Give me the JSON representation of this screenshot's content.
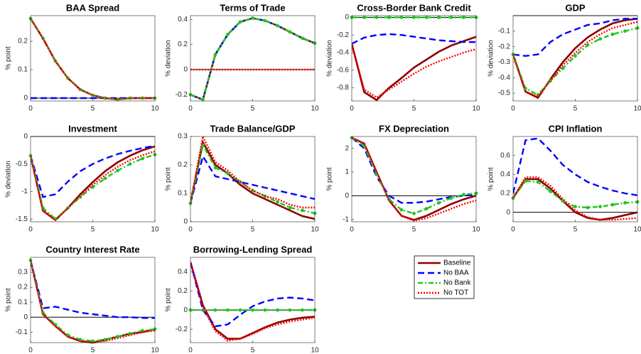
{
  "chart_data": [
    {
      "type": "line",
      "title": "BAA Spread",
      "y_label": "% point",
      "x": [
        0,
        1,
        2,
        3,
        4,
        5,
        6,
        7,
        8,
        9,
        10
      ],
      "xlim": [
        0,
        10
      ],
      "xticks": [
        0,
        5,
        10
      ],
      "ylim": [
        -0.01,
        0.29
      ],
      "yticks": [
        0,
        0.1,
        0.2
      ],
      "series": [
        {
          "name": "Baseline",
          "color": "#8b0000",
          "style": "solid",
          "values": [
            0.28,
            0.21,
            0.13,
            0.07,
            0.03,
            0.01,
            0,
            -0.005,
            0,
            0,
            0
          ]
        },
        {
          "name": "No BAA",
          "color": "#0000ff",
          "style": "dashed",
          "values": [
            0,
            0,
            0,
            0,
            0,
            0,
            0,
            0,
            0,
            0,
            0
          ]
        },
        {
          "name": "No Bank",
          "color": "#22c422",
          "style": "dashdot",
          "values": [
            0.28,
            0.21,
            0.13,
            0.07,
            0.03,
            0.01,
            0,
            -0.005,
            0,
            0,
            0
          ]
        },
        {
          "name": "No TOT",
          "color": "#ff0000",
          "style": "dotted",
          "values": [
            0.28,
            0.21,
            0.13,
            0.07,
            0.03,
            0.01,
            0,
            -0.005,
            0,
            0,
            0
          ]
        }
      ]
    },
    {
      "type": "line",
      "title": "Terms of Trade",
      "y_label": "% deviation",
      "x": [
        0,
        1,
        2,
        3,
        4,
        5,
        6,
        7,
        8,
        9,
        10
      ],
      "xlim": [
        0,
        10
      ],
      "xticks": [
        0,
        5,
        10
      ],
      "ylim": [
        -0.25,
        0.43
      ],
      "yticks": [
        -0.2,
        0,
        0.2,
        0.4
      ],
      "series": [
        {
          "name": "Baseline",
          "color": "#8b0000",
          "style": "solid",
          "values": [
            -0.2,
            -0.24,
            0.12,
            0.28,
            0.38,
            0.41,
            0.39,
            0.35,
            0.3,
            0.25,
            0.21
          ]
        },
        {
          "name": "No BAA",
          "color": "#0000ff",
          "style": "dashed",
          "values": [
            -0.2,
            -0.24,
            0.12,
            0.28,
            0.38,
            0.41,
            0.39,
            0.35,
            0.3,
            0.25,
            0.21
          ]
        },
        {
          "name": "No Bank",
          "color": "#22c422",
          "style": "dashdot",
          "values": [
            -0.2,
            -0.24,
            0.12,
            0.28,
            0.38,
            0.41,
            0.39,
            0.35,
            0.3,
            0.25,
            0.21
          ]
        },
        {
          "name": "No TOT",
          "color": "#ff0000",
          "style": "dotted",
          "values": [
            0,
            0,
            0,
            0,
            0,
            0,
            0,
            0,
            0,
            0,
            0
          ]
        }
      ]
    },
    {
      "type": "line",
      "title": "Cross-Border Bank Credit",
      "y_label": "% deviation",
      "x": [
        0,
        1,
        2,
        3,
        4,
        5,
        6,
        7,
        8,
        9,
        10
      ],
      "xlim": [
        0,
        10
      ],
      "xticks": [
        0,
        5,
        10
      ],
      "ylim": [
        -0.95,
        0.02
      ],
      "yticks": [
        -0.8,
        -0.6,
        -0.4,
        -0.2,
        0
      ],
      "series": [
        {
          "name": "Baseline",
          "color": "#8b0000",
          "style": "solid",
          "values": [
            -0.3,
            -0.85,
            -0.94,
            -0.8,
            -0.69,
            -0.57,
            -0.48,
            -0.39,
            -0.32,
            -0.27,
            -0.22
          ]
        },
        {
          "name": "No BAA",
          "color": "#0000ff",
          "style": "dashed",
          "values": [
            -0.3,
            -0.23,
            -0.2,
            -0.19,
            -0.2,
            -0.22,
            -0.24,
            -0.26,
            -0.27,
            -0.28,
            -0.28
          ]
        },
        {
          "name": "No Bank",
          "color": "#22c422",
          "style": "dashdot",
          "values": [
            0,
            0,
            0,
            0,
            0,
            0,
            0,
            0,
            0,
            0,
            0
          ]
        },
        {
          "name": "No TOT",
          "color": "#ff0000",
          "style": "dotted",
          "values": [
            -0.3,
            -0.82,
            -0.91,
            -0.82,
            -0.73,
            -0.64,
            -0.56,
            -0.5,
            -0.45,
            -0.4,
            -0.36
          ]
        }
      ]
    },
    {
      "type": "line",
      "title": "GDP",
      "y_label": "% deviation",
      "x": [
        0,
        1,
        2,
        3,
        4,
        5,
        6,
        7,
        8,
        9,
        10
      ],
      "xlim": [
        0,
        10
      ],
      "xticks": [
        0,
        5,
        10
      ],
      "ylim": [
        -0.55,
        0
      ],
      "yticks": [
        -0.5,
        -0.4,
        -0.3,
        -0.2,
        -0.1
      ],
      "series": [
        {
          "name": "Baseline",
          "color": "#8b0000",
          "style": "solid",
          "values": [
            -0.25,
            -0.49,
            -0.53,
            -0.41,
            -0.3,
            -0.21,
            -0.14,
            -0.09,
            -0.05,
            -0.03,
            -0.02
          ]
        },
        {
          "name": "No BAA",
          "color": "#0000ff",
          "style": "dashed",
          "values": [
            -0.25,
            -0.26,
            -0.25,
            -0.17,
            -0.12,
            -0.09,
            -0.06,
            -0.05,
            -0.03,
            -0.02,
            -0.02
          ]
        },
        {
          "name": "No Bank",
          "color": "#22c422",
          "style": "dashdot",
          "values": [
            -0.25,
            -0.47,
            -0.51,
            -0.42,
            -0.34,
            -0.26,
            -0.19,
            -0.15,
            -0.12,
            -0.1,
            -0.08
          ]
        },
        {
          "name": "No TOT",
          "color": "#ff0000",
          "style": "dotted",
          "values": [
            -0.25,
            -0.49,
            -0.52,
            -0.42,
            -0.32,
            -0.24,
            -0.17,
            -0.12,
            -0.08,
            -0.06,
            -0.04
          ]
        }
      ]
    },
    {
      "type": "line",
      "title": "Investment",
      "y_label": "% deviation",
      "x": [
        0,
        1,
        2,
        3,
        4,
        5,
        6,
        7,
        8,
        9,
        10
      ],
      "xlim": [
        0,
        10
      ],
      "xticks": [
        0,
        5,
        10
      ],
      "ylim": [
        -1.55,
        0
      ],
      "yticks": [
        -1.5,
        -1,
        -0.5,
        0
      ],
      "series": [
        {
          "name": "Baseline",
          "color": "#8b0000",
          "style": "solid",
          "values": [
            -0.35,
            -1.35,
            -1.52,
            -1.3,
            -1.05,
            -0.83,
            -0.63,
            -0.47,
            -0.35,
            -0.25,
            -0.18
          ]
        },
        {
          "name": "No BAA",
          "color": "#0000ff",
          "style": "dashed",
          "values": [
            -0.35,
            -1.1,
            -1.05,
            -0.82,
            -0.63,
            -0.5,
            -0.4,
            -0.32,
            -0.26,
            -0.21,
            -0.17
          ]
        },
        {
          "name": "No Bank",
          "color": "#22c422",
          "style": "dashdot",
          "values": [
            -0.35,
            -1.3,
            -1.5,
            -1.3,
            -1.1,
            -0.92,
            -0.76,
            -0.62,
            -0.5,
            -0.4,
            -0.33
          ]
        },
        {
          "name": "No TOT",
          "color": "#ff0000",
          "style": "dotted",
          "values": [
            -0.35,
            -1.35,
            -1.52,
            -1.3,
            -1.08,
            -0.88,
            -0.7,
            -0.55,
            -0.43,
            -0.34,
            -0.27
          ]
        }
      ]
    },
    {
      "type": "line",
      "title": "Trade Balance/GDP",
      "y_label": "% point",
      "x": [
        0,
        1,
        2,
        3,
        4,
        5,
        6,
        7,
        8,
        9,
        10
      ],
      "xlim": [
        0,
        10
      ],
      "xticks": [
        0,
        5,
        10
      ],
      "ylim": [
        0,
        0.3
      ],
      "yticks": [
        0,
        0.1,
        0.2,
        0.3
      ],
      "series": [
        {
          "name": "Baseline",
          "color": "#8b0000",
          "style": "solid",
          "values": [
            0.065,
            0.28,
            0.2,
            0.17,
            0.13,
            0.1,
            0.08,
            0.06,
            0.04,
            0.02,
            0.01
          ]
        },
        {
          "name": "No BAA",
          "color": "#0000ff",
          "style": "dashed",
          "values": [
            0.065,
            0.23,
            0.16,
            0.15,
            0.14,
            0.13,
            0.12,
            0.11,
            0.1,
            0.09,
            0.08
          ]
        },
        {
          "name": "No Bank",
          "color": "#22c422",
          "style": "dashdot",
          "values": [
            0.065,
            0.27,
            0.19,
            0.17,
            0.14,
            0.11,
            0.09,
            0.07,
            0.05,
            0.04,
            0.03
          ]
        },
        {
          "name": "No TOT",
          "color": "#ff0000",
          "style": "dotted",
          "values": [
            0.065,
            0.3,
            0.21,
            0.18,
            0.14,
            0.11,
            0.09,
            0.08,
            0.06,
            0.05,
            0.05
          ]
        }
      ]
    },
    {
      "type": "line",
      "title": "FX Depreciation",
      "y_label": "% point",
      "x": [
        0,
        1,
        2,
        3,
        4,
        5,
        6,
        7,
        8,
        9,
        10
      ],
      "xlim": [
        0,
        10
      ],
      "xticks": [
        0,
        5,
        10
      ],
      "ylim": [
        -1.1,
        2.5
      ],
      "yticks": [
        -1,
        0,
        1,
        2
      ],
      "series": [
        {
          "name": "Baseline",
          "color": "#8b0000",
          "style": "solid",
          "values": [
            2.45,
            2.2,
            1.0,
            -0.2,
            -0.85,
            -1.02,
            -0.85,
            -0.6,
            -0.35,
            -0.15,
            0
          ]
        },
        {
          "name": "No BAA",
          "color": "#0000ff",
          "style": "dashed",
          "values": [
            2.45,
            2.0,
            0.8,
            0,
            -0.3,
            -0.3,
            -0.25,
            -0.15,
            -0.05,
            0,
            0.05
          ]
        },
        {
          "name": "No Bank",
          "color": "#22c422",
          "style": "dashdot",
          "values": [
            2.45,
            2.1,
            0.9,
            -0.15,
            -0.6,
            -0.75,
            -0.55,
            -0.3,
            -0.1,
            0.05,
            0.1
          ]
        },
        {
          "name": "No TOT",
          "color": "#ff0000",
          "style": "dotted",
          "values": [
            2.45,
            2.2,
            1.0,
            -0.2,
            -0.85,
            -1.05,
            -0.95,
            -0.75,
            -0.55,
            -0.35,
            -0.2
          ]
        }
      ]
    },
    {
      "type": "line",
      "title": "CPI Inflation",
      "y_label": "% point",
      "x": [
        0,
        1,
        2,
        3,
        4,
        5,
        6,
        7,
        8,
        9,
        10
      ],
      "xlim": [
        0,
        10
      ],
      "xticks": [
        0,
        5,
        10
      ],
      "ylim": [
        -0.1,
        0.8
      ],
      "yticks": [
        0,
        0.2,
        0.4,
        0.6
      ],
      "series": [
        {
          "name": "Baseline",
          "color": "#8b0000",
          "style": "solid",
          "values": [
            0.15,
            0.35,
            0.35,
            0.25,
            0.12,
            0,
            -0.06,
            -0.08,
            -0.06,
            -0.03,
            0
          ]
        },
        {
          "name": "No BAA",
          "color": "#0000ff",
          "style": "dashed",
          "values": [
            0.2,
            0.76,
            0.78,
            0.65,
            0.5,
            0.4,
            0.32,
            0.27,
            0.23,
            0.2,
            0.18
          ]
        },
        {
          "name": "No Bank",
          "color": "#22c422",
          "style": "dashdot",
          "values": [
            0.15,
            0.33,
            0.32,
            0.22,
            0.12,
            0.06,
            0.05,
            0.06,
            0.08,
            0.1,
            0.11
          ]
        },
        {
          "name": "No TOT",
          "color": "#ff0000",
          "style": "dotted",
          "values": [
            0.15,
            0.37,
            0.37,
            0.28,
            0.14,
            0.02,
            -0.05,
            -0.08,
            -0.08,
            -0.07,
            -0.06
          ]
        }
      ]
    },
    {
      "type": "line",
      "title": "Country Interest Rate",
      "y_label": "% point",
      "x": [
        0,
        1,
        2,
        3,
        4,
        5,
        6,
        7,
        8,
        9,
        10
      ],
      "xlim": [
        0,
        10
      ],
      "xticks": [
        0,
        5,
        10
      ],
      "ylim": [
        -0.17,
        0.4
      ],
      "yticks": [
        -0.1,
        0,
        0.1,
        0.2,
        0.3
      ],
      "series": [
        {
          "name": "Baseline",
          "color": "#8b0000",
          "style": "solid",
          "values": [
            0.38,
            0.02,
            -0.06,
            -0.13,
            -0.16,
            -0.17,
            -0.15,
            -0.13,
            -0.11,
            -0.1,
            -0.08
          ]
        },
        {
          "name": "No BAA",
          "color": "#0000ff",
          "style": "dashed",
          "values": [
            0.38,
            0.06,
            0.07,
            0.05,
            0.03,
            0.02,
            0.01,
            0,
            0,
            -0.005,
            -0.005
          ]
        },
        {
          "name": "No Bank",
          "color": "#22c422",
          "style": "dashdot",
          "values": [
            0.38,
            0.03,
            -0.05,
            -0.12,
            -0.15,
            -0.16,
            -0.15,
            -0.13,
            -0.11,
            -0.09,
            -0.08
          ]
        },
        {
          "name": "No TOT",
          "color": "#ff0000",
          "style": "dotted",
          "values": [
            0.38,
            0.02,
            -0.06,
            -0.13,
            -0.16,
            -0.17,
            -0.16,
            -0.14,
            -0.12,
            -0.1,
            -0.09
          ]
        }
      ]
    },
    {
      "type": "line",
      "title": "Borrowing-Lending Spread",
      "y_label": "% point",
      "x": [
        0,
        1,
        2,
        3,
        4,
        5,
        6,
        7,
        8,
        9,
        10
      ],
      "xlim": [
        0,
        10
      ],
      "xticks": [
        0,
        5,
        10
      ],
      "ylim": [
        -0.34,
        0.55
      ],
      "yticks": [
        -0.2,
        0,
        0.2,
        0.4
      ],
      "series": [
        {
          "name": "Baseline",
          "color": "#8b0000",
          "style": "solid",
          "values": [
            0.5,
            0.05,
            -0.2,
            -0.3,
            -0.3,
            -0.24,
            -0.18,
            -0.13,
            -0.1,
            -0.08,
            -0.07
          ]
        },
        {
          "name": "No BAA",
          "color": "#0000ff",
          "style": "dashed",
          "values": [
            0.5,
            0,
            -0.17,
            -0.15,
            -0.05,
            0.04,
            0.09,
            0.12,
            0.13,
            0.12,
            0.1
          ]
        },
        {
          "name": "No Bank",
          "color": "#22c422",
          "style": "dashdot",
          "values": [
            0,
            0,
            0,
            0,
            0,
            0,
            0,
            0,
            0,
            0,
            0
          ]
        },
        {
          "name": "No TOT",
          "color": "#ff0000",
          "style": "dotted",
          "values": [
            0.5,
            0.03,
            -0.22,
            -0.32,
            -0.3,
            -0.25,
            -0.19,
            -0.15,
            -0.12,
            -0.1,
            -0.08
          ]
        }
      ]
    }
  ]
}
